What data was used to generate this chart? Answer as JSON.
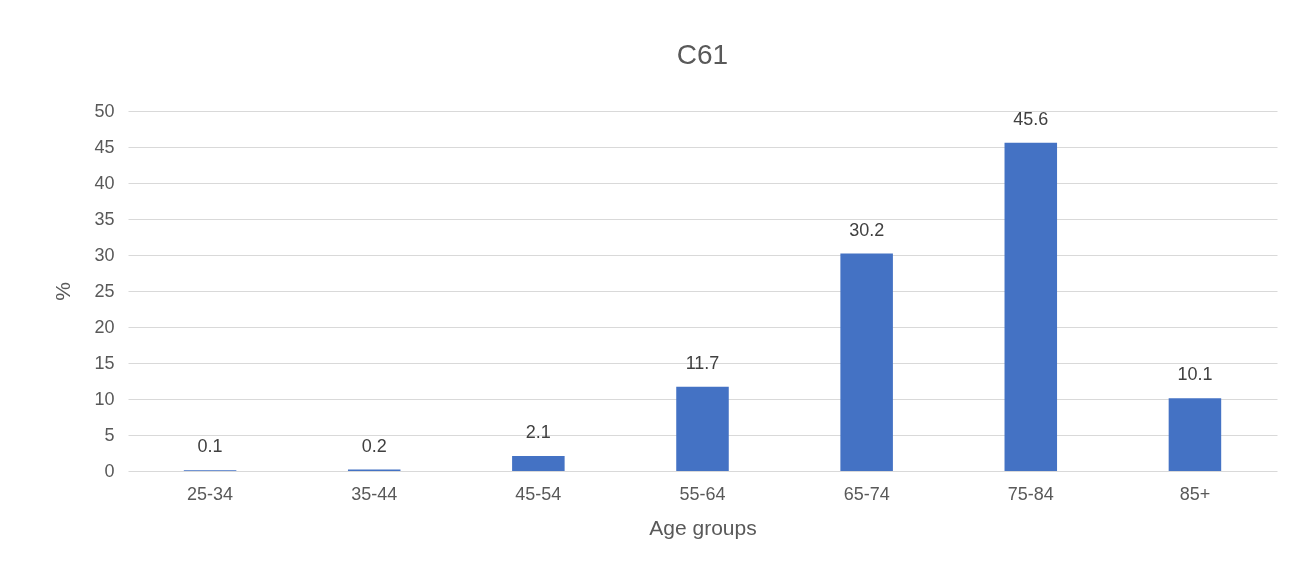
{
  "chart_data": {
    "type": "bar",
    "title": "C61",
    "xlabel": "Age groups",
    "ylabel": "%",
    "categories": [
      "25-34",
      "35-44",
      "45-54",
      "55-64",
      "65-74",
      "75-84",
      "85+"
    ],
    "values": [
      0.1,
      0.2,
      2.1,
      11.7,
      30.2,
      45.6,
      10.1
    ],
    "color": "#4472c4",
    "ylim": [
      0,
      50
    ],
    "yticks": [
      0,
      5,
      10,
      15,
      20,
      25,
      30,
      35,
      40,
      45,
      50
    ],
    "grid": "y",
    "data_labels": true
  }
}
